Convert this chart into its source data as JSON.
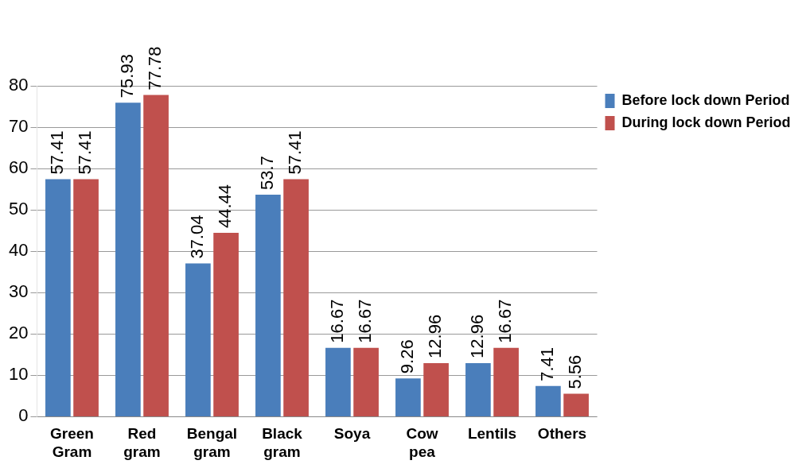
{
  "chart_data": {
    "type": "bar",
    "categories": [
      "Green Gram",
      "Red gram",
      "Bengal gram",
      "Black gram",
      "Soya",
      "Cow pea",
      "Lentils",
      "Others"
    ],
    "series": [
      {
        "name": "Before lock down Period",
        "color": "#4a7ebb",
        "values": [
          57.41,
          75.93,
          37.04,
          53.7,
          16.67,
          9.26,
          12.96,
          7.41
        ]
      },
      {
        "name": "During lock down Period",
        "color": "#c0504d",
        "values": [
          57.41,
          77.78,
          44.44,
          57.41,
          16.67,
          12.96,
          16.67,
          5.56
        ]
      }
    ],
    "ylim": [
      0,
      80
    ],
    "yticks": [
      0,
      10,
      20,
      30,
      40,
      50,
      60,
      70,
      80
    ],
    "grid": "y",
    "legend": "top right",
    "data_labels": true
  }
}
